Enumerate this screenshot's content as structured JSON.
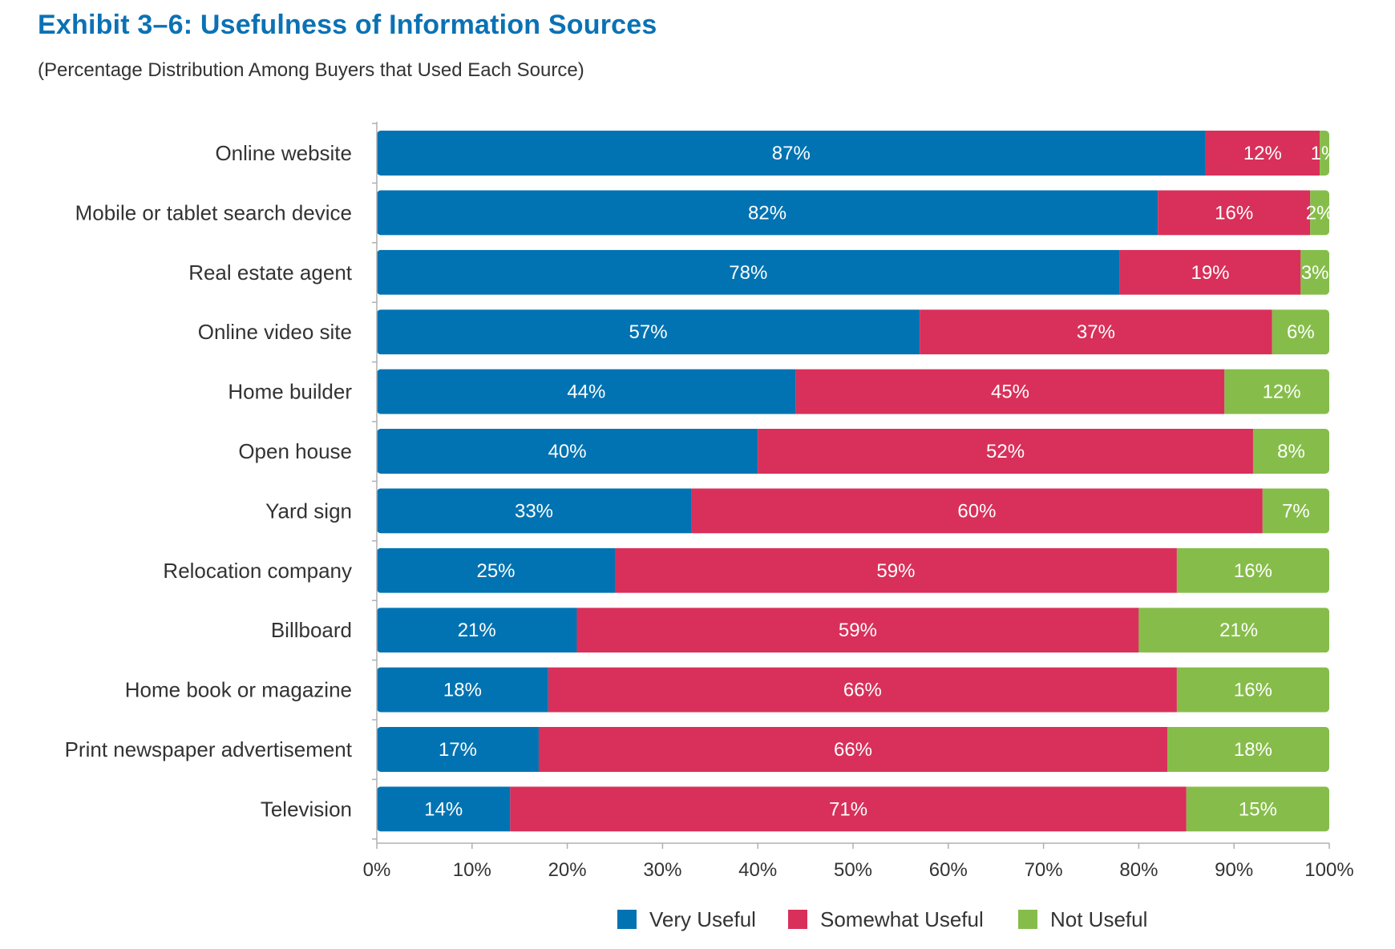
{
  "header": {
    "title": "Exhibit 3–6:  Usefulness of Information Sources",
    "subtitle": "(Percentage Distribution Among Buyers that Used Each Source)"
  },
  "chart_data": {
    "type": "bar",
    "orientation": "horizontal",
    "stacked": true,
    "title": "Exhibit 3–6:  Usefulness of Information Sources",
    "subtitle": "(Percentage Distribution Among Buyers that Used Each Source)",
    "xlim": [
      0,
      100
    ],
    "x_ticks": [
      "0%",
      "10%",
      "20%",
      "30%",
      "40%",
      "50%",
      "60%",
      "70%",
      "80%",
      "90%",
      "100%"
    ],
    "legend_position": "bottom",
    "grid": false,
    "categories": [
      "Online website",
      "Mobile or tablet search device",
      "Real estate agent",
      "Online video site",
      "Home builder",
      "Open house",
      "Yard sign",
      "Relocation company",
      "Billboard",
      "Home book or magazine",
      "Print newspaper advertisement",
      "Television"
    ],
    "series": [
      {
        "name": "Very Useful",
        "color": "#0273b2",
        "values": [
          87,
          82,
          78,
          57,
          44,
          40,
          33,
          25,
          21,
          18,
          17,
          14
        ]
      },
      {
        "name": "Somewhat Useful",
        "color": "#d8305a",
        "values": [
          12,
          16,
          19,
          37,
          45,
          52,
          60,
          59,
          59,
          66,
          66,
          71
        ]
      },
      {
        "name": "Not Useful",
        "color": "#86bd4a",
        "values": [
          1,
          2,
          3,
          6,
          12,
          8,
          7,
          16,
          21,
          16,
          18,
          15
        ]
      }
    ]
  }
}
